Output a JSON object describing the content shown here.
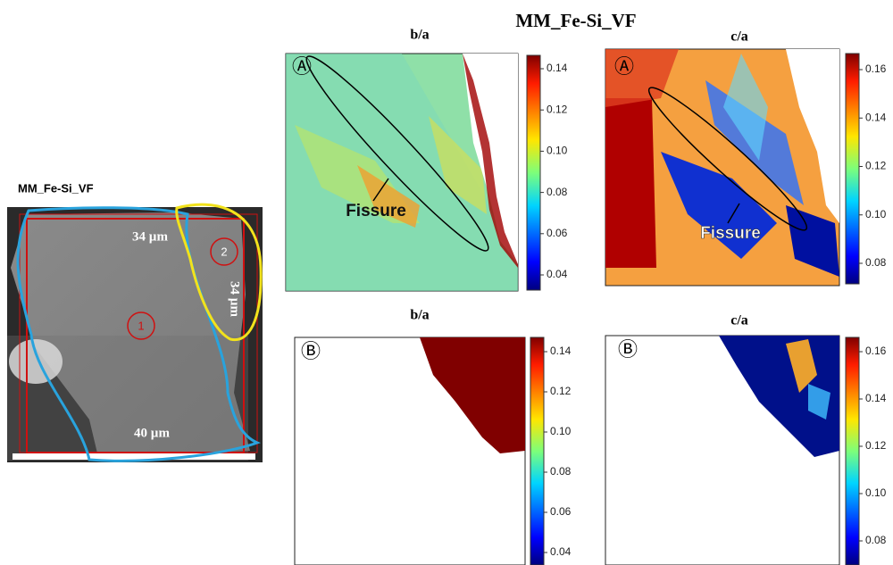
{
  "title": "MM_Fe-Si_VF",
  "sem": {
    "label": "MM_Fe-Si_VF",
    "scale_top": "34 µm",
    "scale_right": "34 µm",
    "scale_bottom": "40 µm",
    "markers": [
      "1",
      "2"
    ]
  },
  "panels": [
    {
      "title": "b/a",
      "tag": "Ⓐ",
      "annotation": "Fissure",
      "colorbar_ticks": [
        "0.14",
        "0.12",
        "0.10",
        "0.08",
        "0.06",
        "0.04"
      ]
    },
    {
      "title": "c/a",
      "tag": "Ⓐ",
      "annotation": "Fissure",
      "colorbar_ticks": [
        "0.16",
        "0.14",
        "0.12",
        "0.10",
        "0.08"
      ]
    },
    {
      "title": "b/a",
      "tag": "Ⓑ",
      "colorbar_ticks": [
        "0.14",
        "0.12",
        "0.10",
        "0.08",
        "0.06",
        "0.04"
      ]
    },
    {
      "title": "c/a",
      "tag": "Ⓑ",
      "colorbar_ticks": [
        "0.16",
        "0.14",
        "0.12",
        "0.10",
        "0.08"
      ]
    }
  ]
}
